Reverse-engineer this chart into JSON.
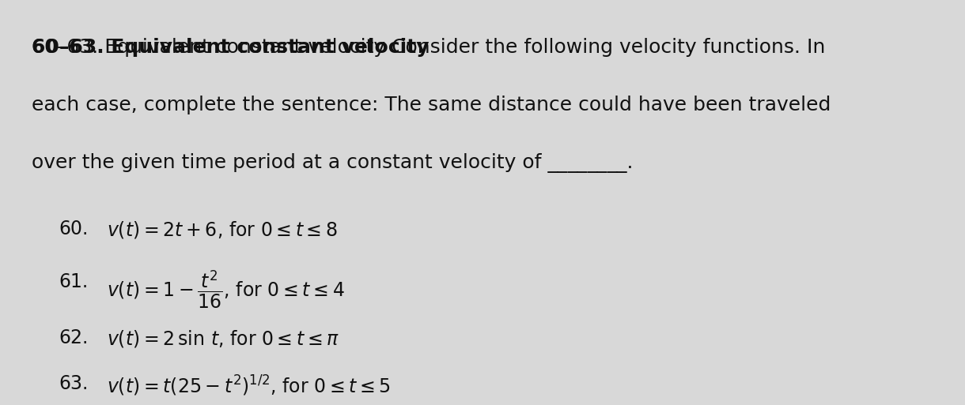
{
  "background_color": "#d8d8d8",
  "bold_header": "60–63. Equivalent constant velocity",
  "header_line1_normal": " Consider the following velocity functions. In",
  "header_line2": "each case, complete the sentence: The same distance could have been traveled",
  "header_line3": "over the given time period at a constant velocity of ________.",
  "item_labels": [
    "60.",
    "61.",
    "62.",
    "63."
  ],
  "item_math": [
    "$v(t) = 2t + 6$, for $0 \\leq t \\leq 8$",
    "$v(t) = 1 - \\dfrac{t^2}{16}$, for $0 \\leq t \\leq 4$",
    "$v(t) = 2\\,\\sin\\, t$, for $0 \\leq t \\leq \\pi$",
    "$v(t) = t(25 - t^2)^{1/2}$, for $0 \\leq t \\leq 5$"
  ],
  "fs_header": 18,
  "fs_items": 17,
  "text_color": "#111111"
}
